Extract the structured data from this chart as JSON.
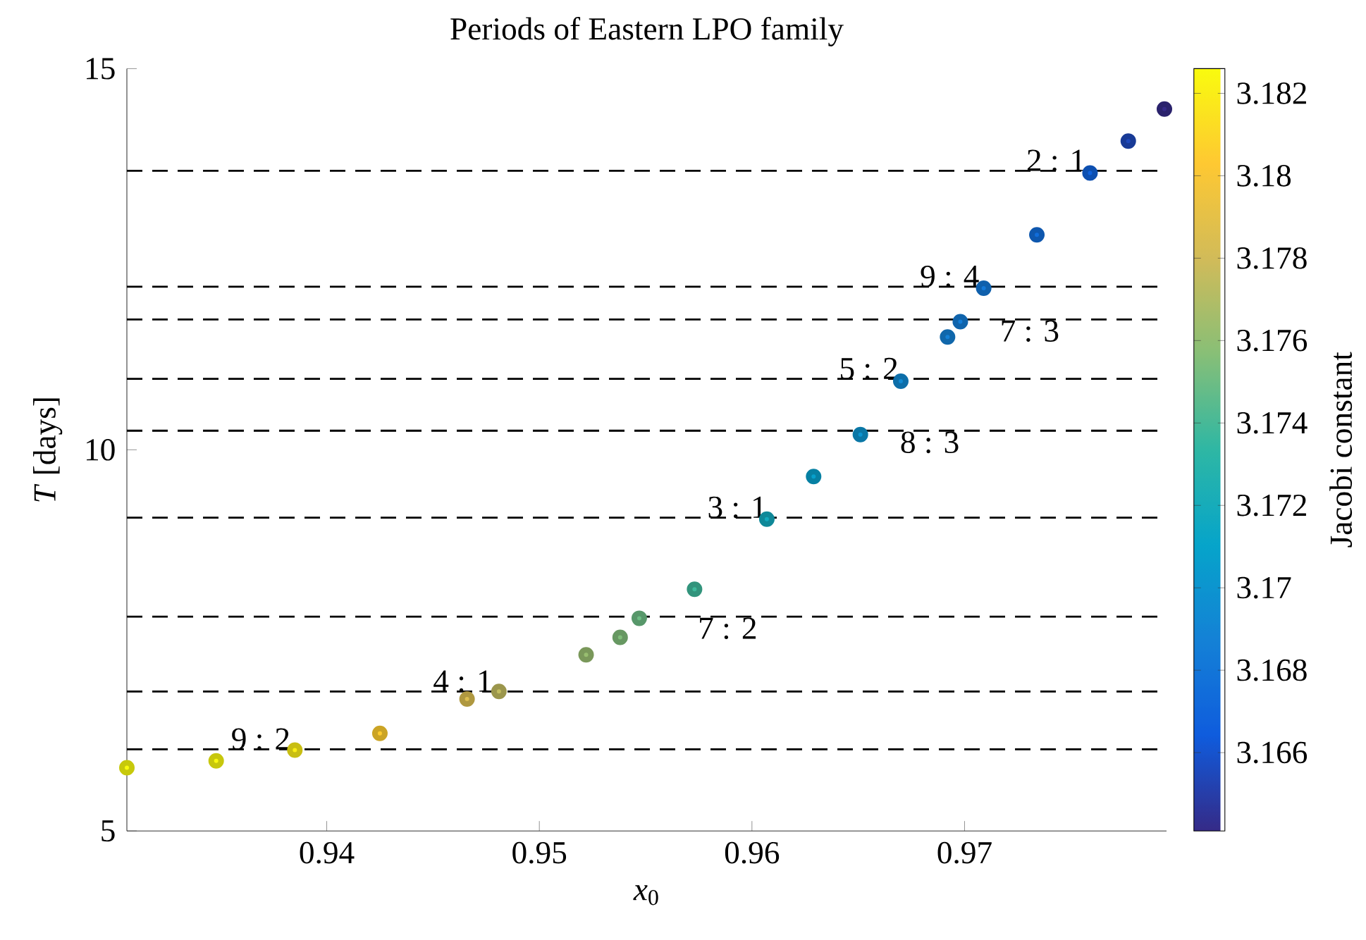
{
  "chart_data": {
    "type": "scatter",
    "title": "Periods of Eastern LPO family",
    "xlabel": "*x*$_{0}$",
    "ylabel": "*T* [days]",
    "clabel": "Jacobi constant",
    "marker": "circle",
    "x": [
      0.9306,
      0.9348,
      0.9385,
      0.9425,
      0.9466,
      0.9481,
      0.9522,
      0.9538,
      0.9547,
      0.9573,
      0.9607,
      0.9629,
      0.9651,
      0.967,
      0.9692,
      0.9698,
      0.9709,
      0.9734,
      0.9759,
      0.9777,
      0.9794
    ],
    "values": [
      5.83,
      5.92,
      6.06,
      6.28,
      6.73,
      6.83,
      7.31,
      7.54,
      7.79,
      8.17,
      9.09,
      9.65,
      10.2,
      10.9,
      11.48,
      11.68,
      12.12,
      12.82,
      13.63,
      14.05,
      14.47
    ],
    "cvalues": [
      3.1826,
      3.1825,
      3.182,
      3.1805,
      3.1785,
      3.1775,
      3.1762,
      3.1755,
      3.175,
      3.1738,
      3.1718,
      3.1708,
      3.17,
      3.1693,
      3.1687,
      3.1685,
      3.1682,
      3.1675,
      3.1668,
      3.1655,
      3.1641
    ],
    "xlim": [
      0.9306,
      0.9795
    ],
    "ylim": [
      5,
      15
    ],
    "xticks": [
      0.94,
      0.95,
      0.96,
      0.97
    ],
    "yticks": [
      5,
      10,
      15
    ],
    "clim": [
      3.1641,
      3.1826
    ],
    "cticks": [
      3.166,
      3.168,
      3.17,
      3.172,
      3.174,
      3.176,
      3.178,
      3.18,
      3.182
    ],
    "ref_lines": [
      {
        "axis": "y",
        "value": 13.66,
        "color": "#000000",
        "line_style": "dashed"
      },
      {
        "axis": "y",
        "value": 12.14,
        "color": "#000000",
        "line_style": "dashed"
      },
      {
        "axis": "y",
        "value": 11.71,
        "color": "#000000",
        "line_style": "dashed"
      },
      {
        "axis": "y",
        "value": 10.93,
        "color": "#000000",
        "line_style": "dashed"
      },
      {
        "axis": "y",
        "value": 10.25,
        "color": "#000000",
        "line_style": "dashed"
      },
      {
        "axis": "y",
        "value": 9.11,
        "color": "#000000",
        "line_style": "dashed"
      },
      {
        "axis": "y",
        "value": 7.81,
        "color": "#000000",
        "line_style": "dashed"
      },
      {
        "axis": "y",
        "value": 6.83,
        "color": "#000000",
        "line_style": "dashed"
      },
      {
        "axis": "y",
        "value": 6.07,
        "color": "#000000",
        "line_style": "dashed"
      }
    ],
    "annotations": [
      {
        "text": "2 : 1",
        "x": 0.976,
        "y": 13.66
      },
      {
        "text": "9 : 4",
        "x": 0.971,
        "y": 12.14
      },
      {
        "text": "7 : 3",
        "x": 0.9699,
        "y": 11.71
      },
      {
        "text": "5 : 2",
        "x": 0.9672,
        "y": 10.93
      },
      {
        "text": "8 : 3",
        "x": 0.9652,
        "y": 10.25
      },
      {
        "text": "3 : 1",
        "x": 0.961,
        "y": 9.11
      },
      {
        "text": "7 : 2",
        "x": 0.9547,
        "y": 7.81
      },
      {
        "text": "4 : 1",
        "x": 0.9481,
        "y": 6.83
      },
      {
        "text": "9 : 2",
        "x": 0.9386,
        "y": 6.07
      }
    ]
  }
}
